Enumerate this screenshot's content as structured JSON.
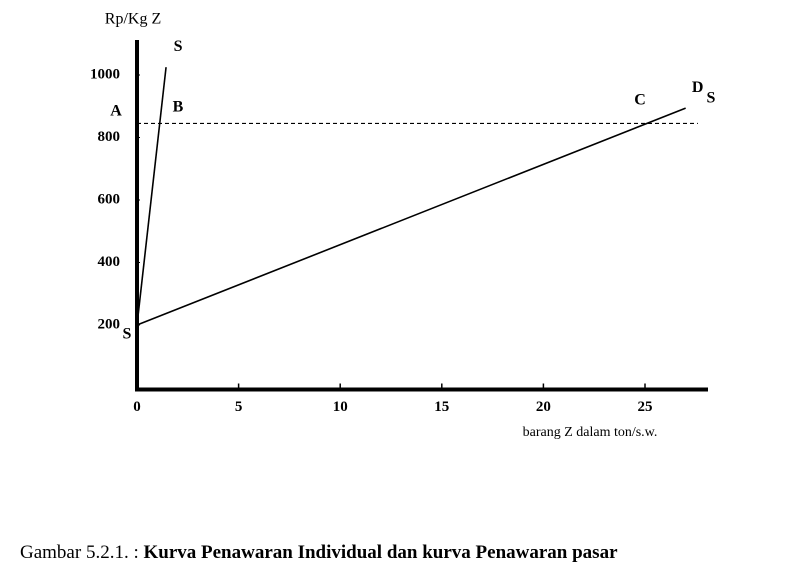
{
  "chart_data": {
    "type": "line",
    "caption": "Gambar 5.2.1. :",
    "title": "Kurva Penawaran Individual dan kurva Penawaran pasar",
    "y_label": "Rp/Kg Z",
    "x_label": "barang Z dalam ton/s.w.",
    "xlim": [
      0,
      28.1
    ],
    "ylim": [
      0,
      1112
    ],
    "xticks": [
      0,
      5,
      10,
      15,
      20,
      25
    ],
    "yticks": [
      200,
      400,
      600,
      800,
      1000
    ],
    "color": "#000000",
    "series": [
      {
        "name": "S",
        "x": [
          0,
          1.43
        ],
        "values": [
          200,
          1025
        ]
      },
      {
        "name": "D",
        "x": [
          0,
          27.0
        ],
        "values": [
          200,
          894
        ]
      },
      {
        "x": [
          0,
          27.6
        ],
        "values": [
          845,
          845
        ],
        "dash": true
      }
    ],
    "annotations": [
      "A",
      "B",
      "C",
      "S",
      "S"
    ]
  }
}
